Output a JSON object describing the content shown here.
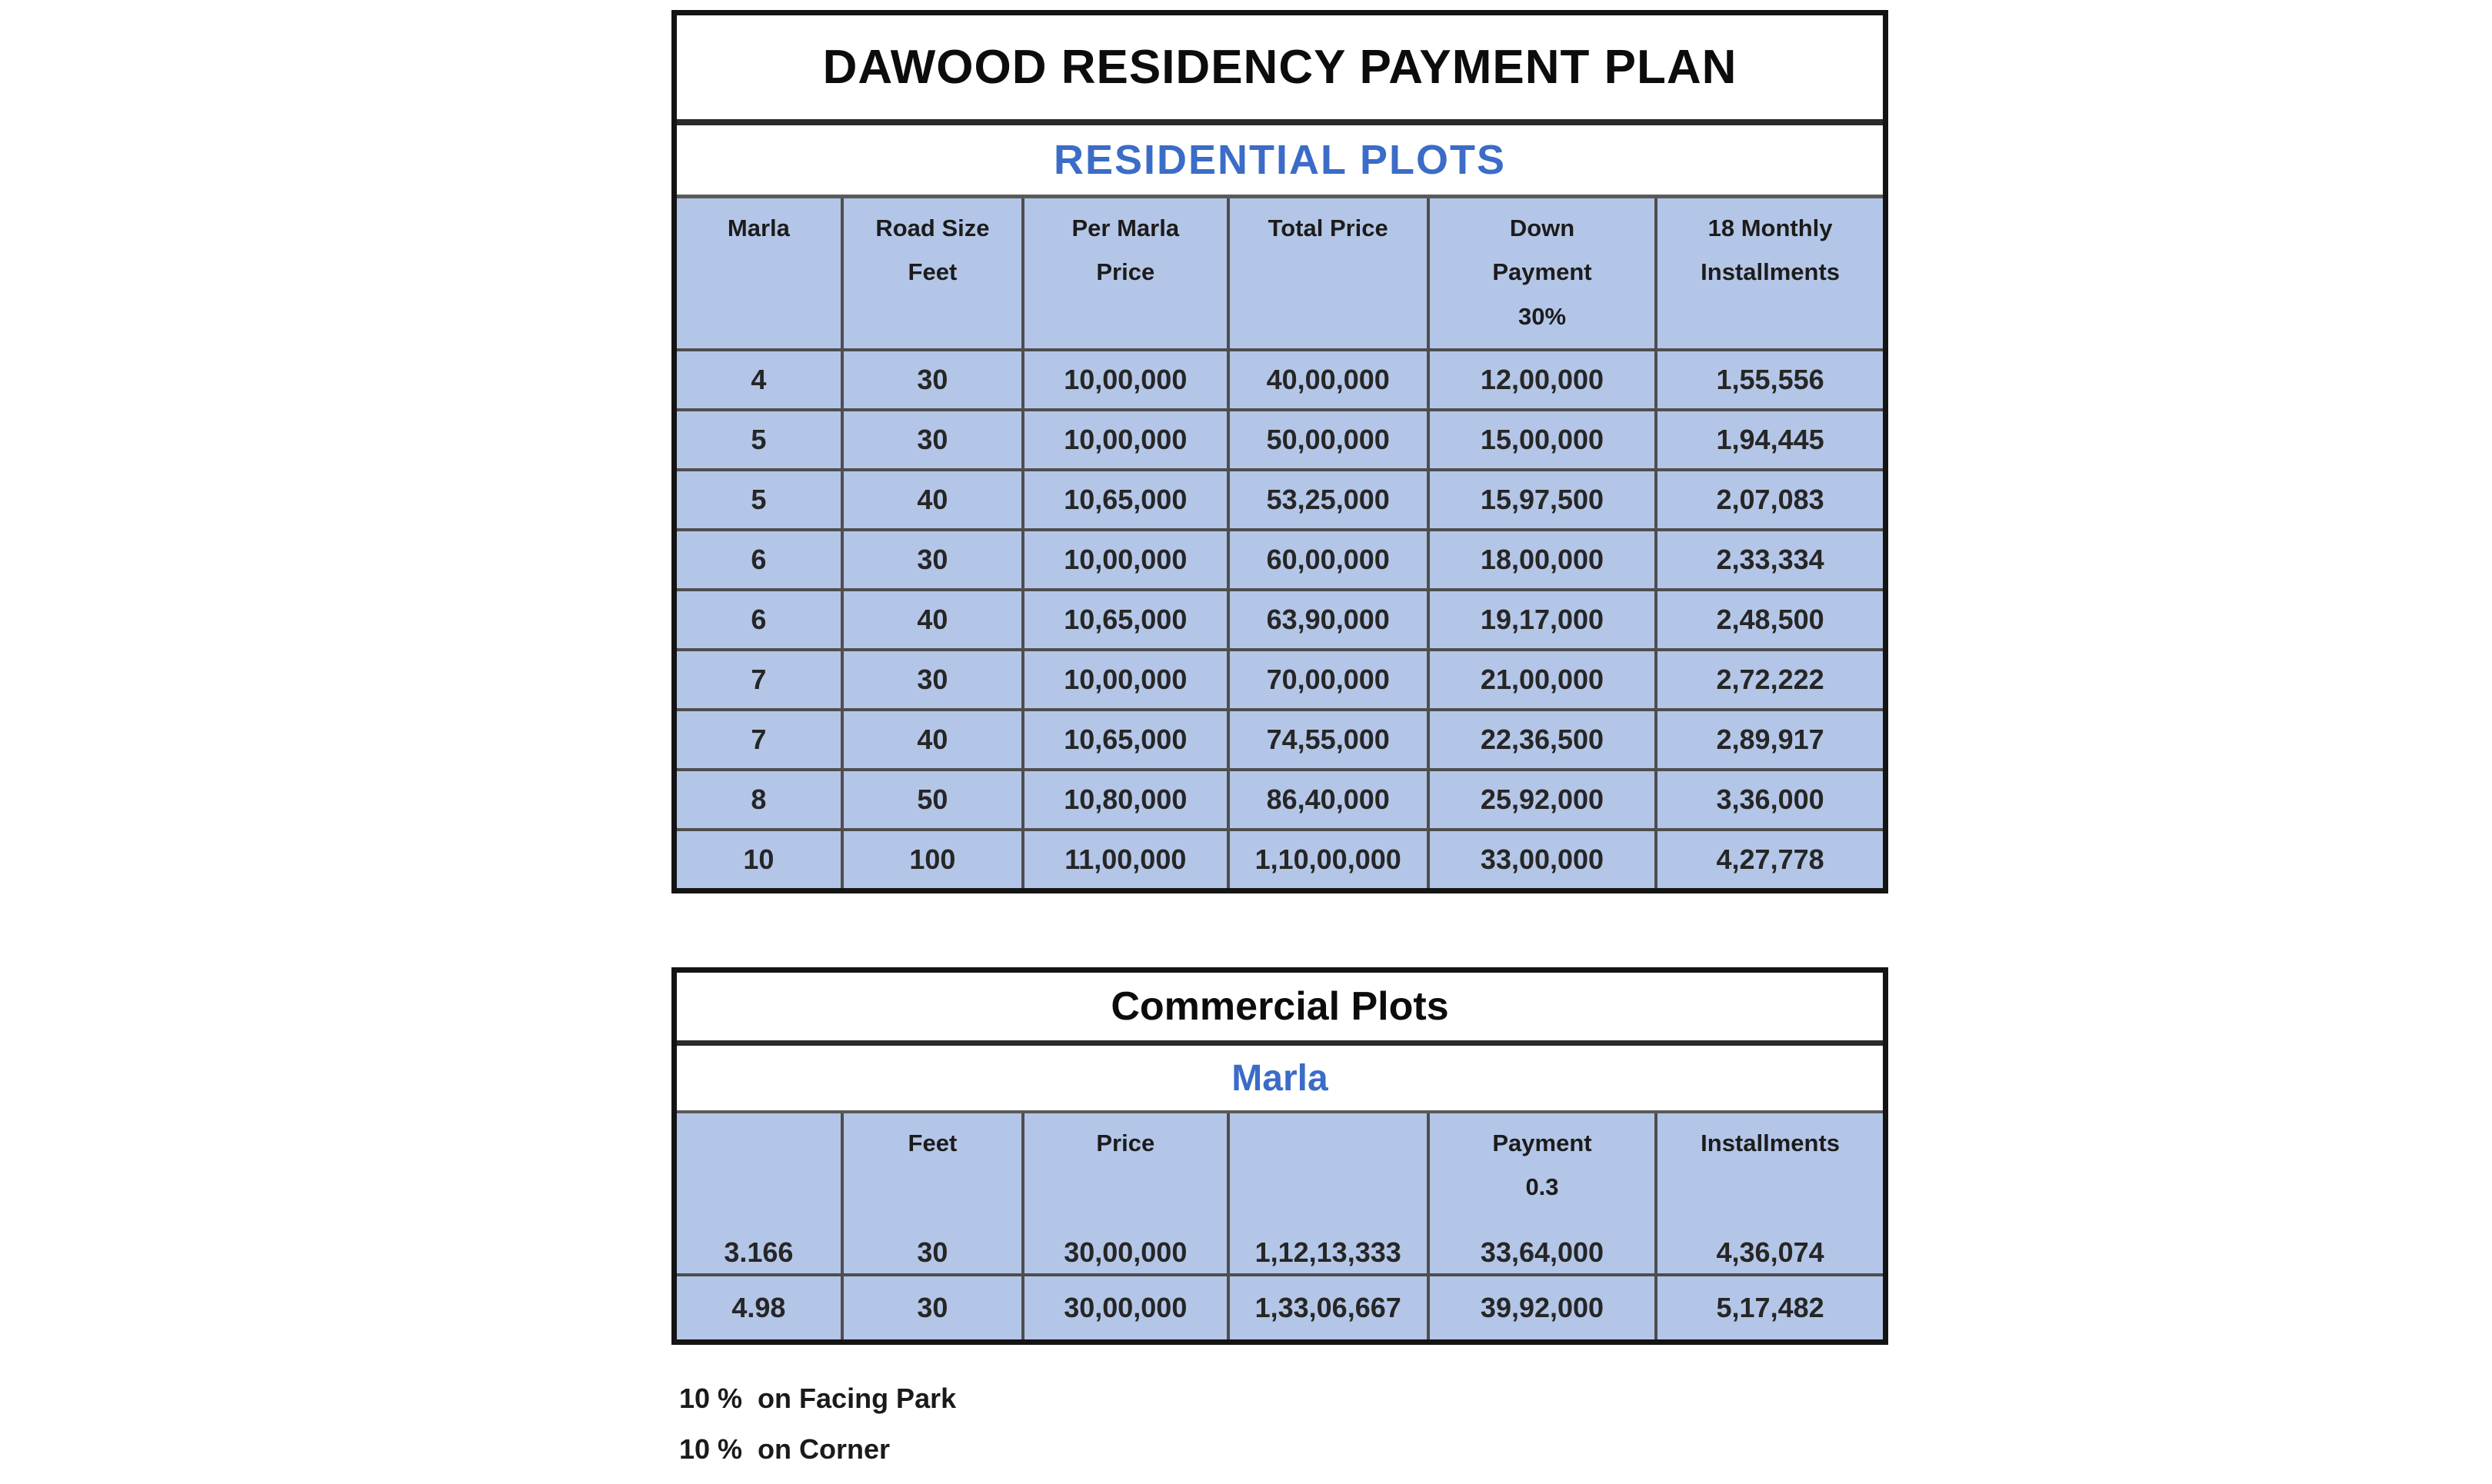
{
  "colors": {
    "accent_blue_text": "#3b6cc7",
    "cell_fill": "#b4c6e7",
    "grid_line": "#4e4e4e",
    "outer_border": "#141414",
    "page_background": "#ffffff"
  },
  "residential": {
    "title": "DAWOOD RESIDENCY PAYMENT PLAN",
    "subtitle": "RESIDENTIAL PLOTS",
    "columns": [
      "Marla",
      "Road Size\nFeet",
      "Per Marla\nPrice",
      "Total Price",
      "Down\nPayment\n30%",
      "18 Monthly\nInstallments"
    ],
    "rows": [
      [
        "4",
        "30",
        "10,00,000",
        "40,00,000",
        "12,00,000",
        "1,55,556"
      ],
      [
        "5",
        "30",
        "10,00,000",
        "50,00,000",
        "15,00,000",
        "1,94,445"
      ],
      [
        "5",
        "40",
        "10,65,000",
        "53,25,000",
        "15,97,500",
        "2,07,083"
      ],
      [
        "6",
        "30",
        "10,00,000",
        "60,00,000",
        "18,00,000",
        "2,33,334"
      ],
      [
        "6",
        "40",
        "10,65,000",
        "63,90,000",
        "19,17,000",
        "2,48,500"
      ],
      [
        "7",
        "30",
        "10,00,000",
        "70,00,000",
        "21,00,000",
        "2,72,222"
      ],
      [
        "7",
        "40",
        "10,65,000",
        "74,55,000",
        "22,36,500",
        "2,89,917"
      ],
      [
        "8",
        "50",
        "10,80,000",
        "86,40,000",
        "25,92,000",
        "3,36,000"
      ],
      [
        "10",
        "100",
        "11,00,000",
        "1,10,00,000",
        "33,00,000",
        "4,27,778"
      ]
    ]
  },
  "commercial": {
    "title": "Commercial Plots",
    "subtitle": "Marla",
    "columns": [
      "",
      "Feet",
      "Price",
      "",
      "Payment\n0.3",
      "Installments"
    ],
    "rows": [
      [
        "3.166",
        "30",
        "30,00,000",
        "1,12,13,333",
        "33,64,000",
        "4,36,074"
      ],
      [
        "4.98",
        "30",
        "30,00,000",
        "1,33,06,667",
        "39,92,000",
        "5,17,482"
      ]
    ]
  },
  "notes": [
    "10 %  on Facing Park",
    "10 %  on Corner"
  ]
}
